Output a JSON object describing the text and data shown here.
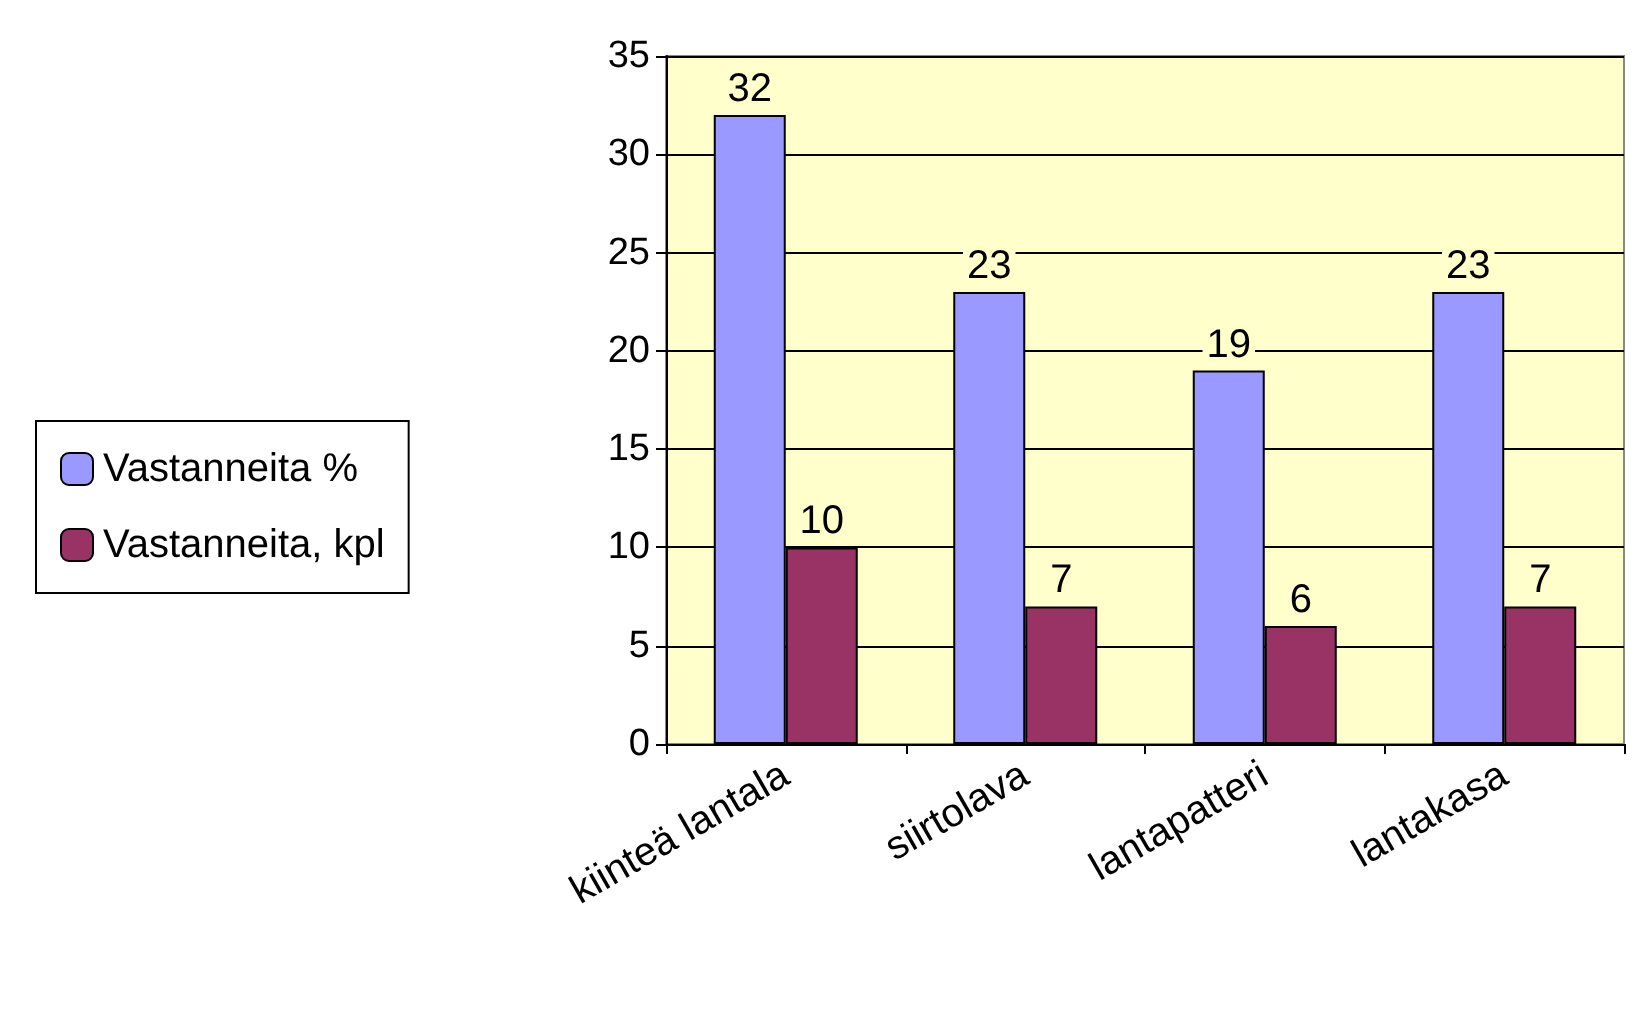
{
  "chart_data": {
    "type": "bar",
    "categories": [
      "kiinteä lantala",
      "siirtolava",
      "lantapatteri",
      "lantakasa"
    ],
    "series": [
      {
        "name": "Vastanneita %",
        "color": "#9999ff",
        "values": [
          32,
          23,
          19,
          23
        ]
      },
      {
        "name": "Vastanneita, kpl",
        "color": "#993366",
        "values": [
          10,
          7,
          6,
          7
        ]
      }
    ],
    "ylim": [
      0,
      35
    ],
    "yticks": [
      0,
      5,
      10,
      15,
      20,
      25,
      30,
      35
    ],
    "grid": "y",
    "legend": "left",
    "data_labels": true
  }
}
